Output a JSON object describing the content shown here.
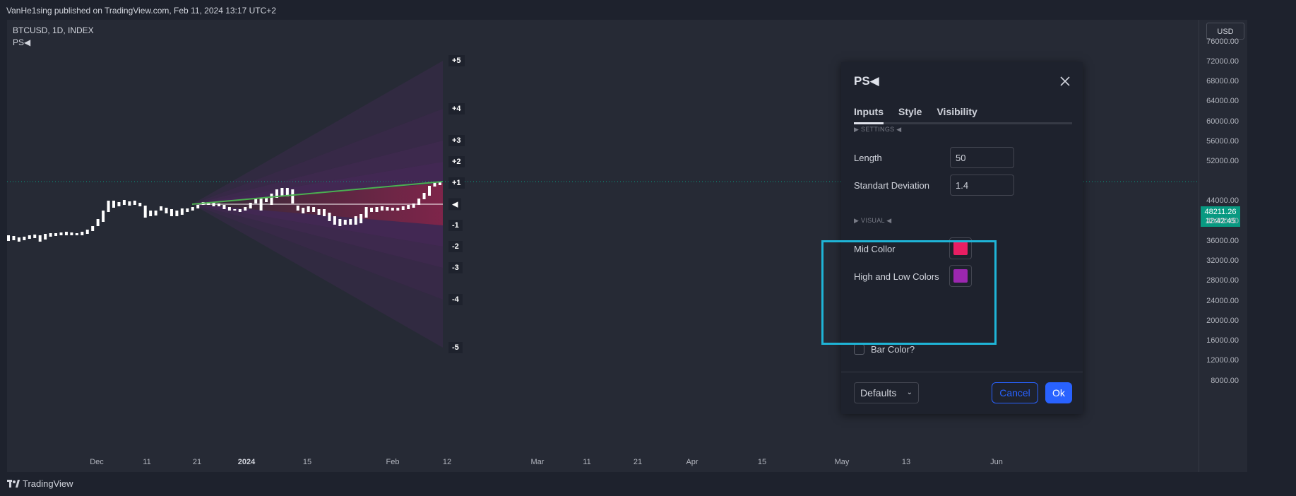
{
  "header": {
    "published": "VanHe1sing published on TradingView.com, Feb 11, 2024 13:17 UTC+2"
  },
  "chart": {
    "symbol": "BTCUSD, 1D, INDEX",
    "indicator": "PS◀",
    "currency": "USD",
    "last_price": "48211.26",
    "countdown": "12:42:45",
    "price_ticks": [
      "76000.00",
      "72000.00",
      "68000.00",
      "64000.00",
      "60000.00",
      "56000.00",
      "52000.00",
      "44000.00",
      "40000.00",
      "36000.00",
      "32000.00",
      "28000.00",
      "24000.00",
      "20000.00",
      "16000.00",
      "12000.00",
      "8000.00"
    ],
    "time_ticks": [
      {
        "label": "Dec",
        "bold": false
      },
      {
        "label": "11",
        "bold": false
      },
      {
        "label": "21",
        "bold": false
      },
      {
        "label": "2024",
        "bold": true
      },
      {
        "label": "15",
        "bold": false
      },
      {
        "label": "Feb",
        "bold": false
      },
      {
        "label": "12",
        "bold": false
      },
      {
        "label": "Mar",
        "bold": false
      },
      {
        "label": "11",
        "bold": false
      },
      {
        "label": "21",
        "bold": false
      },
      {
        "label": "Apr",
        "bold": false
      },
      {
        "label": "15",
        "bold": false
      },
      {
        "label": "May",
        "bold": false
      },
      {
        "label": "13",
        "bold": false
      },
      {
        "label": "Jun",
        "bold": false
      }
    ],
    "levels": [
      "+5",
      "+4",
      "+3",
      "+2",
      "+1",
      "◀",
      "-1",
      "-2",
      "-3",
      "-4",
      "-5"
    ],
    "colors": {
      "mid": "#e91e63",
      "high_low": "#9c27b0",
      "trend": "#4caf50",
      "price_line": "#089981"
    }
  },
  "dialog": {
    "title": "PS◀",
    "tabs": [
      "Inputs",
      "Style",
      "Visibility"
    ],
    "active_tab": "Inputs",
    "settings_section": "▶ SETTINGS ◀",
    "length_label": "Length",
    "length_value": "50",
    "std_label": "Standart Deviation",
    "std_value": "1.4",
    "visual_section": "▶ VISUAL ◀",
    "mid_color_label": "Mid Collor",
    "mid_color": "#e91e63",
    "hl_color_label": "High and Low Colors",
    "hl_color": "#9c27b0",
    "bar_color_label": "Bar Color?",
    "bar_color_checked": false,
    "defaults_label": "Defaults",
    "cancel_label": "Cancel",
    "ok_label": "Ok"
  },
  "brand": "TradingView"
}
